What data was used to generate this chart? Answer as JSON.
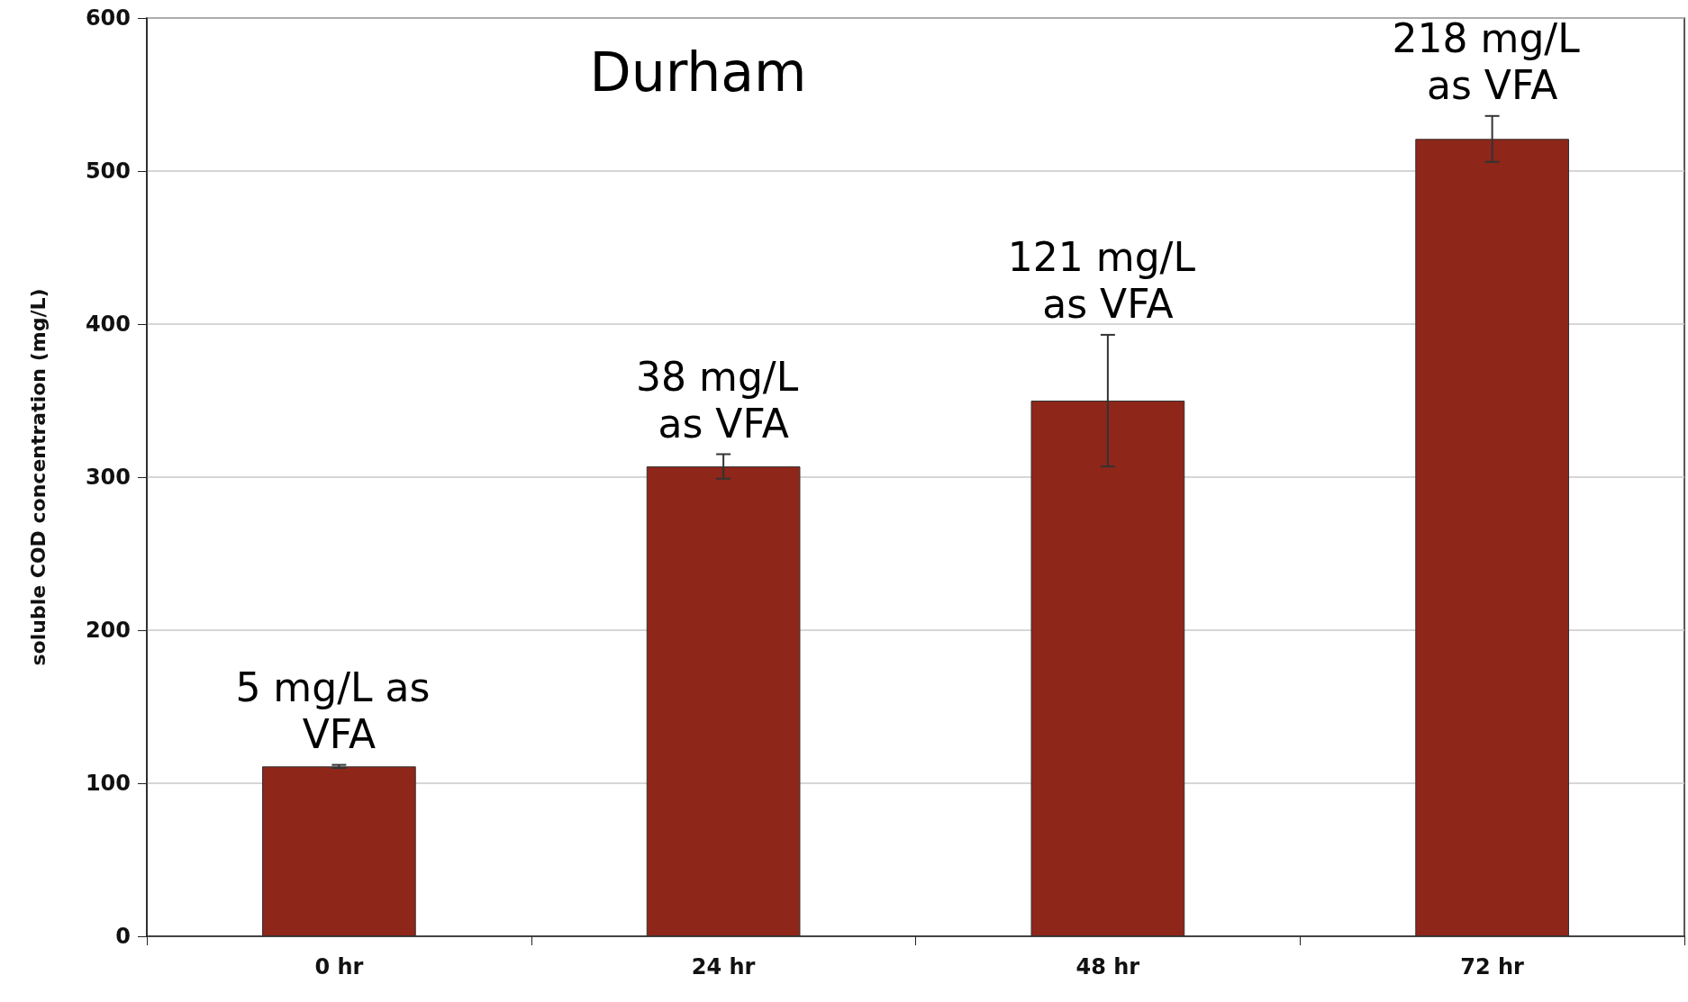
{
  "chart_data": {
    "type": "bar",
    "title": "Durham",
    "ylabel": "soluble COD concentration (mg/L)",
    "categories": [
      "0 hr",
      "24 hr",
      "48 hr",
      "72 hr"
    ],
    "values": [
      111,
      307,
      350,
      521
    ],
    "errors": [
      1,
      8,
      43,
      15
    ],
    "color": "#8e2619",
    "ylim": [
      0,
      600
    ],
    "yticks": [
      0,
      100,
      200,
      300,
      400,
      500,
      600
    ],
    "grid": "y",
    "annotations": [
      {
        "text": "5 mg/L as VFA",
        "x": "0 hr",
        "y": 111
      },
      {
        "text": "38 mg/L as VFA",
        "x": "24 hr",
        "y": 307
      },
      {
        "text": "121 mg/L as VFA",
        "x": "48 hr",
        "y": 350
      },
      {
        "text": "218 mg/L as VFA",
        "x": "72 hr",
        "y": 521
      }
    ]
  }
}
